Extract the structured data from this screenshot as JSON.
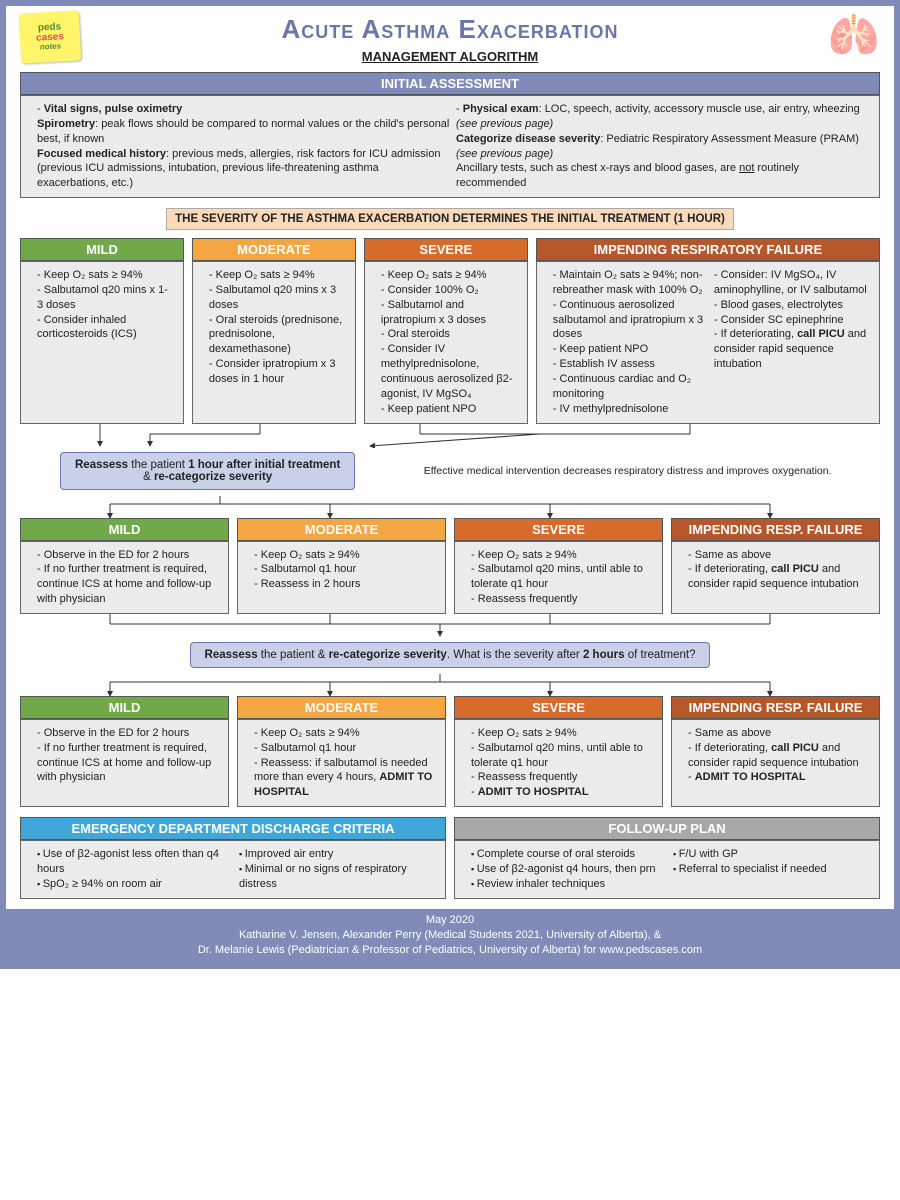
{
  "header": {
    "logo_line1": "peds",
    "logo_line2": "cases",
    "logo_line3": "notes",
    "title": "Acute Asthma Exacerbation",
    "subtitle": "MANAGEMENT ALGORITHM",
    "lung_icon": "🫁"
  },
  "colors": {
    "frame": "#808bb8",
    "mild": "#70a84a",
    "moderate": "#f3a642",
    "severe": "#d66b2c",
    "failure": "#b5572a",
    "cyan": "#3fa8d8",
    "gray_hdr": "#a8a8a8",
    "box_bg": "#ebebeb",
    "reassess_bg": "#c9d0e8",
    "sev_banner_bg": "#fcd9b8"
  },
  "initial": {
    "header": "INITIAL ASSESSMENT",
    "left_html": "<b>Vital signs, pulse oximetry</b><br><b>Spirometry</b>: peak flows should be compared to normal values or the child's personal best, if known<br><b>Focused medical history</b>: previous meds, allergies, risk factors for ICU admission (previous ICU admissions, intubation, previous life-threatening asthma exacerbations, etc.)",
    "right_html": "<b>Physical exam</b>: LOC, speech, activity, accessory muscle use, air entry, wheezing <i>(see previous page)</i><br><b>Categorize disease severity</b>: Pediatric Respiratory Assessment Measure (PRAM) <i>(see previous page)</i><br>Ancillary tests, such as chest x-rays and blood gases, are <u>not</u> routinely recommended"
  },
  "severity_banner": "THE SEVERITY OF THE ASTHMA EXACERBATION DETERMINES THE INITIAL TREATMENT (1 HOUR)",
  "row1": {
    "mild": {
      "title": "MILD",
      "items": [
        "Keep O₂ sats ≥ 94%",
        "Salbutamol q20 mins x 1-3 doses",
        "Consider inhaled corticosteroids (ICS)"
      ]
    },
    "moderate": {
      "title": "MODERATE",
      "items": [
        "Keep O₂ sats ≥ 94%",
        "Salbutamol q20 mins x 3 doses",
        "Oral steroids (prednisone, prednisolone, dexamethasone)",
        "Consider ipratropium x 3 doses in 1 hour"
      ]
    },
    "severe": {
      "title": "SEVERE",
      "items": [
        "Keep O₂ sats ≥ 94%",
        "Consider 100% O₂",
        "Salbutamol and ipratropium x 3 doses",
        "Oral steroids",
        "Consider IV methylprednisolone, continuous aerosolized β2-agonist, IV MgSO₄",
        "Keep patient NPO"
      ]
    },
    "failure": {
      "title": "IMPENDING RESPIRATORY FAILURE",
      "left_items": [
        "Maintain O₂ sats ≥ 94%; non-rebreather mask with 100% O₂",
        "Continuous aerosolized salbutamol and ipratropium x 3 doses",
        "Keep patient NPO",
        "Establish IV assess",
        "Continuous cardiac and O₂ monitoring",
        "IV methylprednisolone"
      ],
      "right_items": [
        "Consider: IV MgSO₄, IV aminophylline, or IV salbutamol",
        "Blood gases, electrolytes",
        "Consider SC epinephrine",
        "If deteriorating, <b>call PICU</b> and consider rapid sequence intubation"
      ]
    }
  },
  "reassess1_html": "<b>Reassess</b> the patient <b>1 hour after initial treatment</b><br>& <b>re-categorize severity</b>",
  "intervention_note": "Effective medical intervention decreases respiratory distress and improves oxygenation.",
  "row2": {
    "mild": {
      "title": "MILD",
      "items": [
        "Observe in the ED for 2 hours",
        "If no further treatment is required, continue ICS at home and follow-up with physician"
      ]
    },
    "moderate": {
      "title": "MODERATE",
      "items": [
        "Keep O₂ sats ≥ 94%",
        "Salbutamol q1 hour",
        "Reassess in 2 hours"
      ]
    },
    "severe": {
      "title": "SEVERE",
      "items": [
        "Keep O₂ sats ≥ 94%",
        "Salbutamol q20 mins, until able to tolerate q1 hour",
        "Reassess frequently"
      ]
    },
    "failure": {
      "title": "IMPENDING RESP. FAILURE",
      "items": [
        "Same as above",
        "If deteriorating, <b>call PICU</b> and consider rapid sequence intubation"
      ]
    }
  },
  "reassess2_html": "<b>Reassess</b> the patient & <b>re-categorize severity</b>. What is the severity after <b>2 hours</b> of treatment?",
  "row3": {
    "mild": {
      "title": "MILD",
      "items": [
        "Observe in the ED for 2 hours",
        "If no further treatment is required, continue ICS at home and follow-up with physician"
      ]
    },
    "moderate": {
      "title": "MODERATE",
      "items": [
        "Keep O₂ sats ≥ 94%",
        "Salbutamol q1 hour",
        "Reassess: if salbutamol is needed more than every 4 hours, <b>ADMIT TO HOSPITAL</b>"
      ]
    },
    "severe": {
      "title": "SEVERE",
      "items": [
        "Keep O₂ sats ≥ 94%",
        "Salbutamol q20 mins, until able to tolerate q1 hour",
        "Reassess frequently",
        "<b>ADMIT TO HOSPITAL</b>"
      ]
    },
    "failure": {
      "title": "IMPENDING RESP. FAILURE",
      "items": [
        "Same as above",
        "If deteriorating, <b>call PICU</b> and consider rapid sequence intubation",
        "<b>ADMIT TO HOSPITAL</b>"
      ]
    }
  },
  "discharge": {
    "title": "EMERGENCY DEPARTMENT DISCHARGE CRITERIA",
    "left_items": [
      "Use of β2-agonist less often than q4 hours",
      "SpO₂ ≥ 94% on room air"
    ],
    "right_items": [
      "Improved air entry",
      "Minimal or no signs of respiratory distress"
    ]
  },
  "followup": {
    "title": "FOLLOW-UP PLAN",
    "left_items": [
      "Complete course of oral steroids",
      "Use of β2-agonist q4 hours, then prn",
      "Review inhaler techniques"
    ],
    "right_items": [
      "F/U with GP",
      "Referral to specialist if needed"
    ]
  },
  "footer": {
    "date": "May 2020",
    "credits_html": "Katharine V. Jensen, Alexander Perry (Medical Students 2021, University of Alberta), &<br>Dr. Melanie Lewis (Pediatrician & Professor of Pediatrics, University of Alberta) for www.pedscases.com"
  }
}
